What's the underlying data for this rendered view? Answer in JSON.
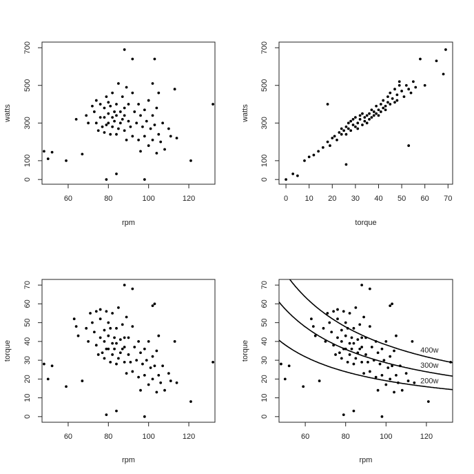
{
  "chart_data": [
    {
      "type": "scatter",
      "xlabel": "rpm",
      "ylabel": "watts",
      "xlim": [
        47,
        133
      ],
      "ylim": [
        -25,
        730
      ],
      "xticks": [
        "60",
        "80",
        "100",
        "120"
      ],
      "yticks": [
        "0",
        "100",
        "300",
        "500",
        "700"
      ],
      "grid": false,
      "points_x": [
        48,
        50,
        52,
        59,
        64,
        67,
        69,
        70,
        72,
        73,
        74,
        74,
        75,
        76,
        76,
        77,
        78,
        78,
        78,
        79,
        79,
        80,
        80,
        80,
        81,
        81,
        82,
        82,
        82,
        83,
        83,
        84,
        84,
        84,
        85,
        85,
        86,
        86,
        87,
        87,
        88,
        88,
        88,
        89,
        89,
        90,
        90,
        91,
        92,
        92,
        93,
        94,
        95,
        95,
        96,
        96,
        97,
        98,
        98,
        99,
        100,
        100,
        101,
        102,
        102,
        103,
        104,
        104,
        105,
        105,
        106,
        107,
        108,
        110,
        111,
        113,
        114,
        121,
        132,
        92,
        88,
        84,
        98,
        102,
        79,
        103
      ],
      "points_y": [
        150,
        110,
        145,
        100,
        320,
        135,
        340,
        300,
        390,
        360,
        300,
        420,
        260,
        330,
        400,
        280,
        380,
        250,
        330,
        440,
        290,
        410,
        350,
        300,
        240,
        390,
        330,
        460,
        280,
        360,
        310,
        400,
        240,
        340,
        510,
        270,
        360,
        300,
        440,
        320,
        380,
        260,
        340,
        490,
        210,
        310,
        400,
        280,
        460,
        230,
        360,
        300,
        210,
        400,
        340,
        150,
        280,
        370,
        230,
        310,
        420,
        180,
        270,
        340,
        210,
        290,
        140,
        380,
        240,
        460,
        200,
        300,
        160,
        270,
        230,
        480,
        220,
        100,
        400,
        640,
        690,
        30,
        0,
        510,
        0,
        640
      ]
    },
    {
      "type": "scatter",
      "xlabel": "torque",
      "ylabel": "watts",
      "xlim": [
        -3,
        72
      ],
      "ylim": [
        -25,
        730
      ],
      "xticks": [
        "0",
        "10",
        "20",
        "30",
        "40",
        "50",
        "60",
        "70"
      ],
      "yticks": [
        "0",
        "100",
        "300",
        "500",
        "700"
      ],
      "grid": false,
      "points_x": [
        0,
        3,
        5,
        8,
        10,
        12,
        14,
        16,
        18,
        19,
        20,
        21,
        22,
        23,
        24,
        24,
        25,
        26,
        26,
        27,
        27,
        28,
        28,
        29,
        29,
        30,
        30,
        31,
        31,
        32,
        32,
        33,
        33,
        34,
        34,
        35,
        35,
        36,
        36,
        37,
        37,
        38,
        38,
        39,
        39,
        40,
        40,
        41,
        41,
        42,
        42,
        43,
        43,
        44,
        44,
        45,
        45,
        46,
        47,
        47,
        48,
        48,
        49,
        50,
        51,
        52,
        53,
        54,
        55,
        56,
        58,
        60,
        65,
        68,
        69,
        18,
        26,
        49,
        53
      ],
      "points_y": [
        0,
        30,
        20,
        100,
        120,
        130,
        150,
        170,
        200,
        180,
        220,
        230,
        210,
        250,
        240,
        270,
        260,
        280,
        240,
        300,
        270,
        310,
        260,
        290,
        320,
        280,
        330,
        300,
        270,
        320,
        340,
        290,
        350,
        310,
        330,
        340,
        300,
        350,
        320,
        370,
        330,
        360,
        340,
        390,
        350,
        370,
        340,
        400,
        360,
        380,
        420,
        390,
        370,
        410,
        440,
        400,
        460,
        430,
        410,
        480,
        450,
        420,
        500,
        470,
        440,
        500,
        480,
        460,
        520,
        490,
        640,
        500,
        630,
        560,
        690,
        400,
        80,
        520,
        180
      ]
    },
    {
      "type": "scatter",
      "xlabel": "rpm",
      "ylabel": "torque",
      "xlim": [
        47,
        133
      ],
      "ylim": [
        -3,
        73
      ],
      "xticks": [
        "60",
        "80",
        "100",
        "120"
      ],
      "yticks": [
        "0",
        "10",
        "20",
        "30",
        "40",
        "50",
        "60",
        "70"
      ],
      "grid": false,
      "points_x": [
        48,
        50,
        52,
        59,
        64,
        67,
        69,
        70,
        72,
        73,
        74,
        74,
        75,
        76,
        76,
        77,
        78,
        78,
        78,
        79,
        79,
        80,
        80,
        80,
        81,
        81,
        82,
        82,
        82,
        83,
        83,
        84,
        84,
        84,
        85,
        85,
        86,
        86,
        87,
        87,
        88,
        88,
        88,
        89,
        89,
        90,
        90,
        91,
        92,
        92,
        93,
        94,
        95,
        95,
        96,
        96,
        97,
        98,
        98,
        99,
        100,
        100,
        101,
        102,
        102,
        103,
        104,
        104,
        105,
        105,
        106,
        107,
        108,
        110,
        111,
        113,
        114,
        121,
        132,
        92,
        88,
        84,
        98,
        102,
        79,
        103,
        63,
        65,
        71,
        76
      ],
      "points_y": [
        28,
        20,
        27,
        16,
        48,
        19,
        47,
        40,
        50,
        45,
        38,
        56,
        33,
        42,
        52,
        34,
        46,
        31,
        40,
        56,
        36,
        50,
        43,
        36,
        29,
        47,
        39,
        55,
        33,
        42,
        36,
        47,
        28,
        39,
        58,
        31,
        41,
        34,
        49,
        36,
        42,
        29,
        37,
        53,
        23,
        33,
        42,
        29,
        48,
        24,
        37,
        30,
        21,
        40,
        34,
        14,
        28,
        36,
        22,
        30,
        40,
        17,
        26,
        32,
        20,
        27,
        13,
        35,
        22,
        43,
        18,
        27,
        14,
        23,
        19,
        40,
        18,
        8,
        29,
        68,
        70,
        3,
        0,
        59,
        1,
        60,
        52,
        43,
        55,
        57
      ]
    },
    {
      "type": "scatter",
      "xlabel": "rpm",
      "ylabel": "torque",
      "xlim": [
        47,
        133
      ],
      "ylim": [
        -3,
        73
      ],
      "xticks": [
        "60",
        "80",
        "100",
        "120"
      ],
      "yticks": [
        "0",
        "10",
        "20",
        "30",
        "40",
        "50",
        "60",
        "70"
      ],
      "grid": false,
      "points_x": [
        48,
        50,
        52,
        59,
        64,
        67,
        69,
        70,
        72,
        73,
        74,
        74,
        75,
        76,
        76,
        77,
        78,
        78,
        78,
        79,
        79,
        80,
        80,
        80,
        81,
        81,
        82,
        82,
        82,
        83,
        83,
        84,
        84,
        84,
        85,
        85,
        86,
        86,
        87,
        87,
        88,
        88,
        88,
        89,
        89,
        90,
        90,
        91,
        92,
        92,
        93,
        94,
        95,
        95,
        96,
        96,
        97,
        98,
        98,
        99,
        100,
        100,
        101,
        102,
        102,
        103,
        104,
        104,
        105,
        105,
        106,
        107,
        108,
        110,
        111,
        113,
        114,
        121,
        132,
        92,
        88,
        84,
        98,
        102,
        79,
        103,
        63,
        65,
        71,
        76
      ],
      "points_y": [
        28,
        20,
        27,
        16,
        48,
        19,
        47,
        40,
        50,
        45,
        38,
        56,
        33,
        42,
        52,
        34,
        46,
        31,
        40,
        56,
        36,
        50,
        43,
        36,
        29,
        47,
        39,
        55,
        33,
        42,
        36,
        47,
        28,
        39,
        58,
        31,
        41,
        34,
        49,
        36,
        42,
        29,
        37,
        53,
        23,
        33,
        42,
        29,
        48,
        24,
        37,
        30,
        21,
        40,
        34,
        14,
        28,
        36,
        22,
        30,
        40,
        17,
        26,
        32,
        20,
        27,
        13,
        35,
        22,
        43,
        18,
        27,
        14,
        23,
        19,
        40,
        18,
        8,
        29,
        68,
        70,
        3,
        0,
        59,
        1,
        60,
        52,
        43,
        55,
        57
      ],
      "curves": [
        {
          "label": "400w",
          "watts": 400
        },
        {
          "label": "300w",
          "watts": 300
        },
        {
          "label": "200w",
          "watts": 200
        }
      ]
    }
  ]
}
